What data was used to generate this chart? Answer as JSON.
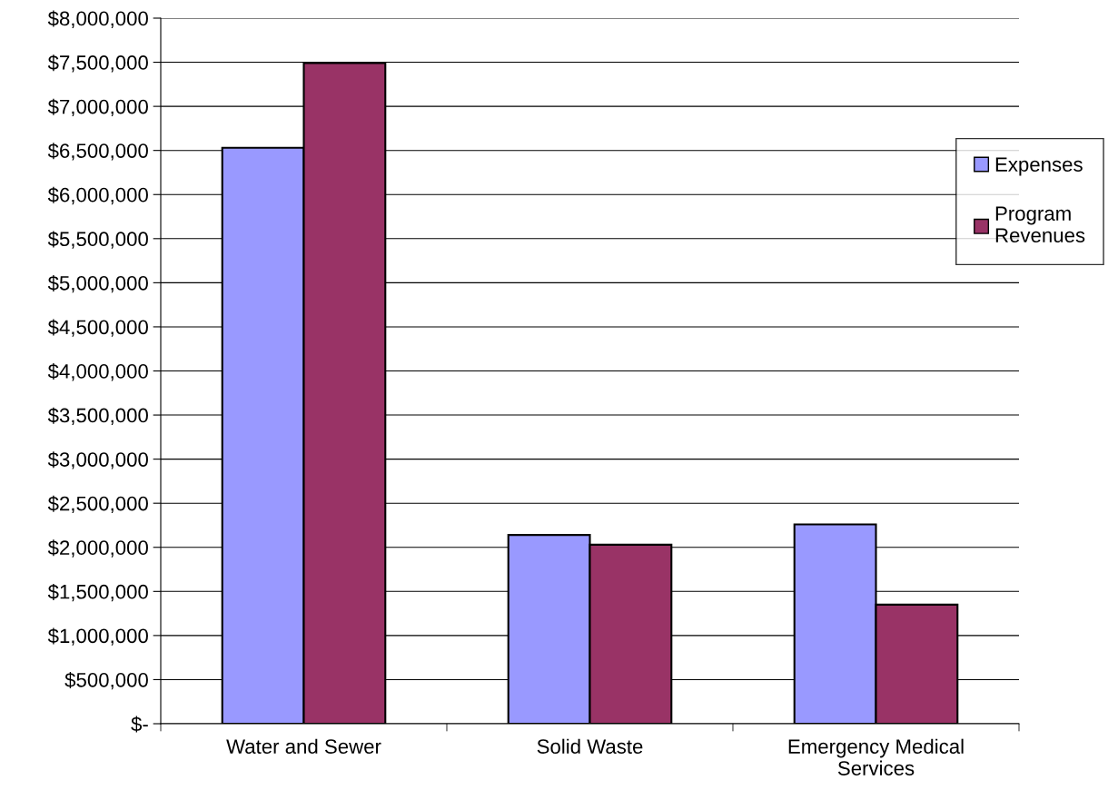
{
  "chart_data": {
    "type": "bar",
    "categories": [
      "Water and Sewer",
      "Solid Waste",
      "Emergency Medical\nServices"
    ],
    "series": [
      {
        "name": "Expenses",
        "color": "#9999ff",
        "values": [
          6530000,
          2140000,
          2260000
        ]
      },
      {
        "name": "Program\nRevenues",
        "color": "#993366",
        "values": [
          7490000,
          2030000,
          1350000
        ]
      }
    ],
    "ylim": [
      0,
      8000000
    ],
    "yticks": [
      {
        "value": 0,
        "label": "$-"
      },
      {
        "value": 500000,
        "label": "$500,000"
      },
      {
        "value": 1000000,
        "label": "$1,000,000"
      },
      {
        "value": 1500000,
        "label": "$1,500,000"
      },
      {
        "value": 2000000,
        "label": "$2,000,000"
      },
      {
        "value": 2500000,
        "label": "$2,500,000"
      },
      {
        "value": 3000000,
        "label": "$3,000,000"
      },
      {
        "value": 3500000,
        "label": "$3,500,000"
      },
      {
        "value": 4000000,
        "label": "$4,000,000"
      },
      {
        "value": 4500000,
        "label": "$4,500,000"
      },
      {
        "value": 5000000,
        "label": "$5,000,000"
      },
      {
        "value": 5500000,
        "label": "$5,500,000"
      },
      {
        "value": 6000000,
        "label": "$6,000,000"
      },
      {
        "value": 6500000,
        "label": "$6,500,000"
      },
      {
        "value": 7000000,
        "label": "$7,000,000"
      },
      {
        "value": 7500000,
        "label": "$7,500,000"
      },
      {
        "value": 8000000,
        "label": "$8,000,000"
      }
    ],
    "grid": "y",
    "legend": "right"
  }
}
